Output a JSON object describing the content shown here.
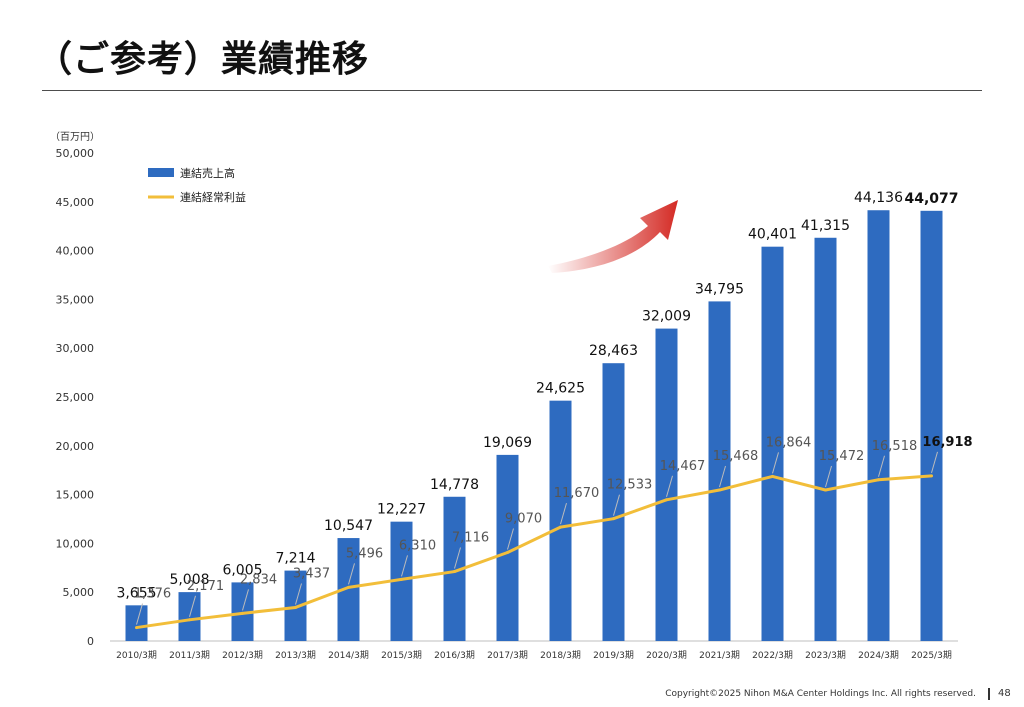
{
  "page": {
    "title": "（ご参考）業績推移",
    "copyright": "Copyright©2025 Nihon M&A Center Holdings Inc. All rights reserved.",
    "page_number": "48"
  },
  "colors": {
    "bar": "#2E6BC0",
    "line": "#F2BE3A",
    "arrow_dark": "#D42A24",
    "arrow_light": "#FFFFFF"
  },
  "chart_data": {
    "type": "bar",
    "unit_label": "（百万円）",
    "categories": [
      "2010/3期",
      "2011/3期",
      "2012/3期",
      "2013/3期",
      "2014/3期",
      "2015/3期",
      "2016/3期",
      "2017/3期",
      "2018/3期",
      "2019/3期",
      "2020/3期",
      "2021/3期",
      "2022/3期",
      "2023/3期",
      "2024/3期",
      "2025/3期"
    ],
    "ylim": [
      0,
      50000
    ],
    "yticks": [
      0,
      5000,
      10000,
      15000,
      20000,
      25000,
      30000,
      35000,
      40000,
      45000,
      50000
    ],
    "ytick_labels": [
      "0",
      "5,000",
      "10,000",
      "15,000",
      "20,000",
      "25,000",
      "30,000",
      "35,000",
      "40,000",
      "45,000",
      "50,000"
    ],
    "grid": false,
    "legend_position": "top-left",
    "series": [
      {
        "name": "連結売上高",
        "type": "bar",
        "values": [
          3655,
          5008,
          6005,
          7214,
          10547,
          12227,
          14778,
          19069,
          24625,
          28463,
          32009,
          34795,
          40401,
          41315,
          44136,
          44077
        ],
        "labels": [
          "3,655",
          "5,008",
          "6,005",
          "7,214",
          "10,547",
          "12,227",
          "14,778",
          "19,069",
          "24,625",
          "28,463",
          "32,009",
          "34,795",
          "40,401",
          "41,315",
          "44,136",
          "44,077"
        ]
      },
      {
        "name": "連結経常利益",
        "type": "line",
        "values": [
          1376,
          2171,
          2834,
          3437,
          5496,
          6310,
          7116,
          9070,
          11670,
          12533,
          14467,
          15468,
          16864,
          15472,
          16518,
          16918
        ],
        "labels": [
          "1,376",
          "2,171",
          "2,834",
          "3,437",
          "5,496",
          "6,310",
          "7,116",
          "9,070",
          "11,670",
          "12,533",
          "14,467",
          "15,468",
          "16,864",
          "15,472",
          "16,518",
          "16,918"
        ]
      }
    ]
  }
}
